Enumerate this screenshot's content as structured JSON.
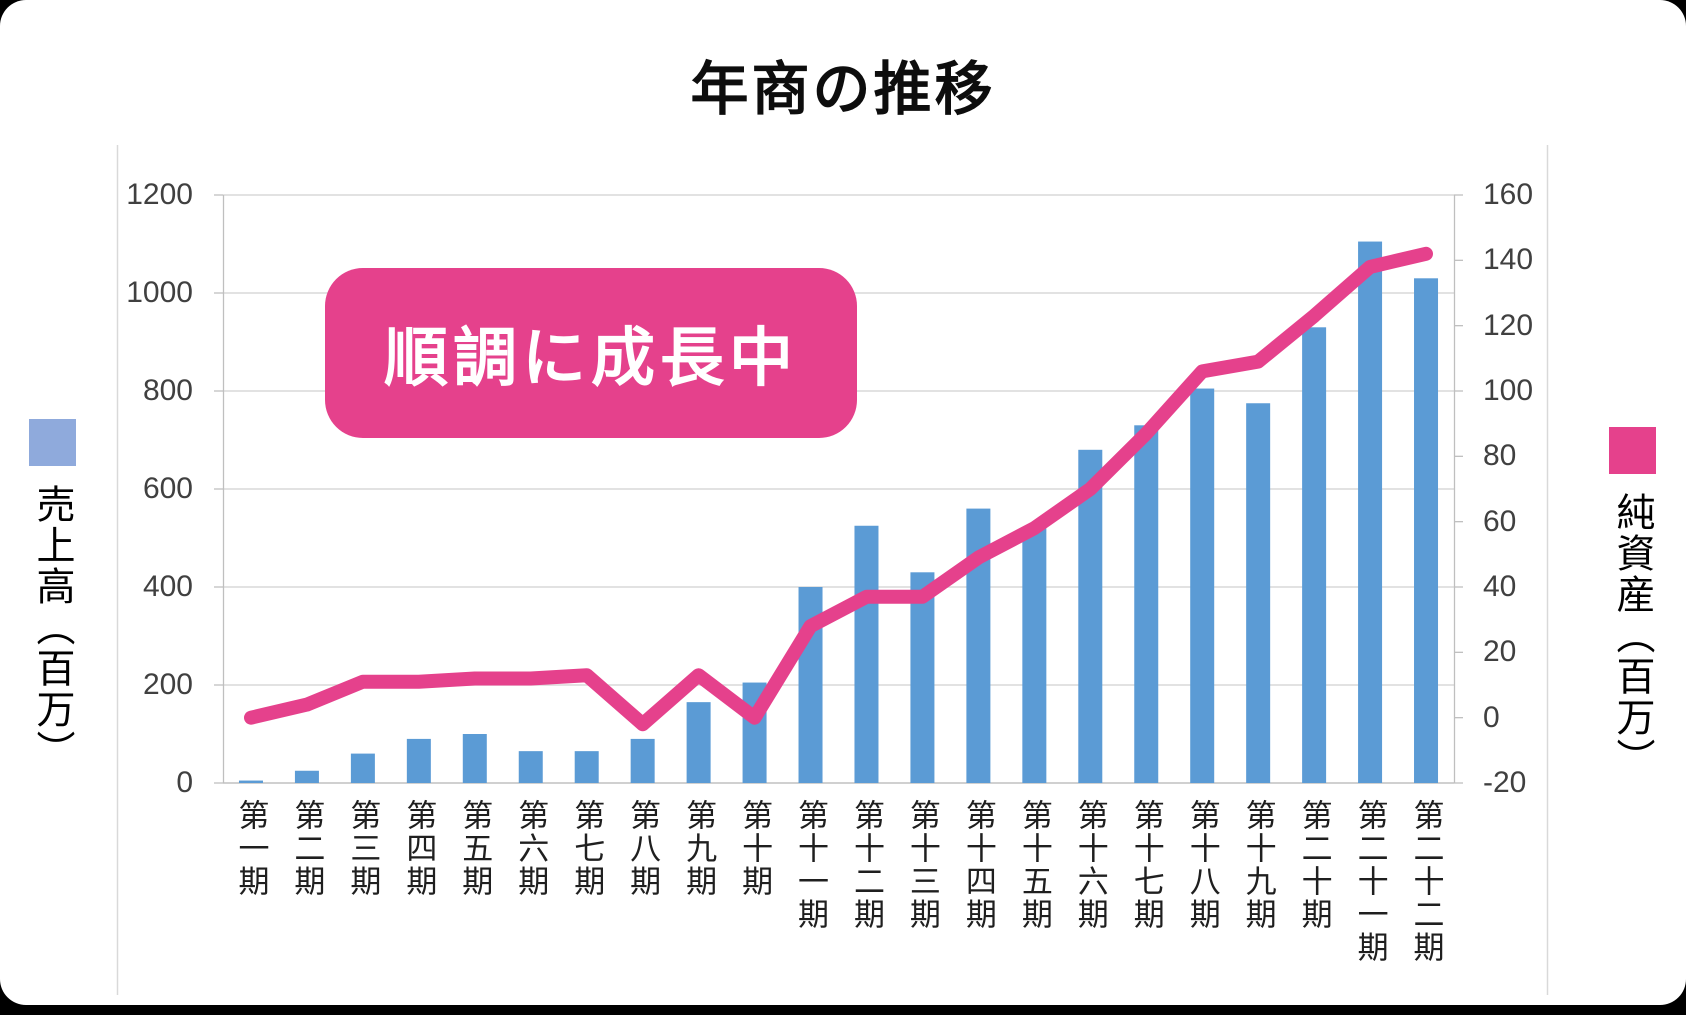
{
  "title": "年商の推移",
  "callout": {
    "text": "順調に成長中"
  },
  "legend_left": {
    "label": "売上高（百万）"
  },
  "legend_right": {
    "label": "純資産（百万）"
  },
  "colors": {
    "bar": "#5B9BD5",
    "bar_legend_swatch": "#8FAADC",
    "pink": "#E5418C",
    "grid": "#D9D9D9",
    "axis_line": "#BFBFBF",
    "baseline": "#C0C0C0",
    "y_tick_label": "#404040",
    "x_tick_label": "#1F1F1F"
  },
  "chart_data": {
    "type": "combo-bar-line",
    "title": "年商の推移",
    "annotation": "順調に成長中",
    "grid": "horizontal",
    "legend_position": "sides",
    "categories": [
      "第一期",
      "第二期",
      "第三期",
      "第四期",
      "第五期",
      "第六期",
      "第七期",
      "第八期",
      "第九期",
      "第十期",
      "第十一期",
      "第十二期",
      "第十三期",
      "第十四期",
      "第十五期",
      "第十六期",
      "第十七期",
      "第十八期",
      "第十九期",
      "第二十期",
      "第二十一期",
      "第二十二期"
    ],
    "series": [
      {
        "name": "売上高(百万)",
        "type": "bar",
        "axis": "left",
        "color": "#5B9BD5",
        "values": [
          5,
          25,
          60,
          90,
          100,
          65,
          65,
          90,
          165,
          205,
          400,
          525,
          430,
          560,
          520,
          680,
          730,
          805,
          775,
          930,
          1105,
          1030
        ]
      },
      {
        "name": "純資産(百万)",
        "type": "line",
        "axis": "right",
        "color": "#E5418C",
        "values": [
          0,
          4,
          11,
          11,
          12,
          12,
          13,
          -2,
          13,
          0,
          28,
          37,
          37,
          49,
          58,
          70,
          87,
          106,
          109,
          123,
          138,
          142
        ]
      }
    ],
    "left_axis": {
      "label": "売上高(百万)",
      "min": 0,
      "max": 1200,
      "step": 200
    },
    "right_axis": {
      "label": "純資産(百万)",
      "min": -20,
      "max": 160,
      "step": 20
    }
  }
}
